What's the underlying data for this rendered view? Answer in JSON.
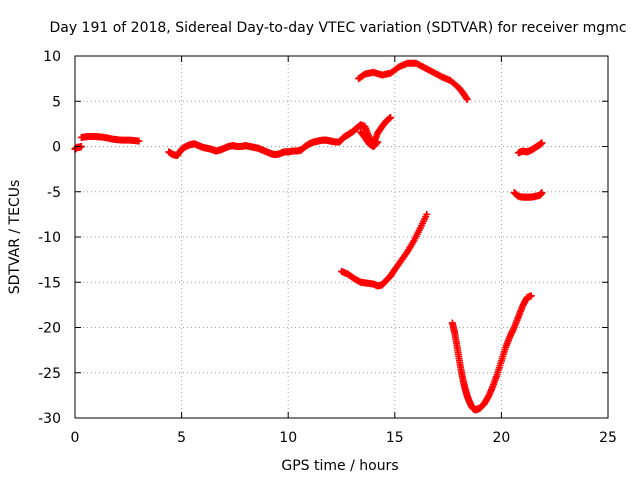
{
  "chart_data": {
    "type": "scatter",
    "title": "Day 191 of 2018, Sidereal Day-to-day VTEC variation (SDTVAR) for receiver mgmc",
    "xlabel": "GPS time / hours",
    "ylabel": "SDTVAR / TECUs",
    "xlim": [
      0,
      25
    ],
    "ylim": [
      -30,
      10
    ],
    "x_ticks": [
      0,
      5,
      10,
      15,
      20,
      25
    ],
    "y_ticks": [
      -30,
      -25,
      -20,
      -15,
      -10,
      -5,
      0,
      5,
      10
    ],
    "grid": true,
    "legend": "none",
    "marker": "plus",
    "series_color": "#ff0000",
    "grid_color": "#a0a0a0",
    "series": [
      {
        "x": [
          0.0,
          0.1,
          0.2,
          0.3
        ],
        "y": [
          -0.3,
          -0.1,
          -0.1,
          0.0
        ]
      },
      {
        "x": [
          0.3,
          0.6,
          1.0,
          1.4,
          1.8,
          2.2,
          2.6,
          3.0
        ],
        "y": [
          1.0,
          1.1,
          1.1,
          1.0,
          0.8,
          0.7,
          0.7,
          0.6
        ]
      },
      {
        "x": [
          4.4,
          4.6,
          4.8,
          5.0,
          5.2,
          5.4,
          5.6,
          5.8,
          6.0,
          6.2,
          6.4,
          6.6,
          6.8,
          7.0,
          7.2,
          7.4,
          7.6,
          7.8,
          8.0,
          8.2,
          8.4,
          8.6,
          8.8,
          9.0,
          9.2,
          9.4,
          9.6,
          9.8,
          10.0,
          10.2,
          10.4,
          10.6,
          10.8,
          11.0,
          11.2,
          11.4,
          11.6,
          11.8,
          12.0,
          12.2,
          12.4,
          12.6,
          12.8,
          13.0,
          13.2,
          13.4,
          13.6,
          13.8,
          14.0,
          14.2,
          14.4,
          14.6,
          14.8
        ],
        "y": [
          -0.6,
          -0.9,
          -1.0,
          -0.3,
          0.0,
          0.2,
          0.3,
          0.1,
          -0.1,
          -0.2,
          -0.3,
          -0.5,
          -0.4,
          -0.2,
          0.0,
          0.1,
          0.0,
          0.0,
          0.1,
          0.0,
          -0.1,
          -0.2,
          -0.4,
          -0.6,
          -0.8,
          -0.9,
          -0.8,
          -0.6,
          -0.6,
          -0.5,
          -0.5,
          -0.4,
          0.0,
          0.3,
          0.5,
          0.6,
          0.7,
          0.7,
          0.6,
          0.5,
          0.5,
          1.0,
          1.3,
          1.6,
          2.0,
          2.4,
          2.2,
          1.0,
          0.3,
          1.5,
          2.2,
          2.8,
          3.2
        ]
      },
      {
        "x": [
          13.4,
          13.6,
          13.8,
          14.0,
          14.2
        ],
        "y": [
          1.6,
          1.0,
          0.3,
          0.0,
          0.5
        ]
      },
      {
        "x": [
          13.3,
          13.6,
          14.0,
          14.4,
          14.8,
          15.2,
          15.6,
          16.0,
          16.4,
          16.8,
          17.2,
          17.6,
          18.0,
          18.2,
          18.4
        ],
        "y": [
          7.5,
          8.0,
          8.2,
          7.9,
          8.1,
          8.8,
          9.2,
          9.2,
          8.7,
          8.2,
          7.7,
          7.3,
          6.5,
          5.9,
          5.2
        ]
      },
      {
        "x": [
          12.5,
          12.8,
          13.1,
          13.4,
          13.7,
          14.0,
          14.2,
          14.4,
          14.6,
          14.8,
          15.0,
          15.3,
          15.6,
          15.9,
          16.2,
          16.5
        ],
        "y": [
          -13.8,
          -14.1,
          -14.6,
          -15.0,
          -15.1,
          -15.2,
          -15.4,
          -15.3,
          -14.8,
          -14.3,
          -13.6,
          -12.6,
          -11.6,
          -10.4,
          -9.0,
          -7.5
        ]
      },
      {
        "x": [
          17.7,
          17.8,
          17.9,
          18.0,
          18.1,
          18.2,
          18.3,
          18.4,
          18.5,
          18.6,
          18.7,
          18.8,
          18.9,
          19.0,
          19.2,
          19.4,
          19.6,
          19.8,
          20.0,
          20.2,
          20.4,
          20.6,
          20.8,
          21.0,
          21.2,
          21.4
        ],
        "y": [
          -19.5,
          -20.5,
          -21.8,
          -23.2,
          -24.6,
          -25.8,
          -26.8,
          -27.6,
          -28.2,
          -28.7,
          -29.0,
          -29.1,
          -29.0,
          -28.9,
          -28.4,
          -27.6,
          -26.5,
          -25.2,
          -23.7,
          -22.2,
          -21.0,
          -20.0,
          -18.8,
          -17.6,
          -16.7,
          -16.5
        ]
      },
      {
        "x": [
          20.6,
          20.8,
          21.0,
          21.2,
          21.4,
          21.6,
          21.8,
          21.9
        ],
        "y": [
          -5.1,
          -5.5,
          -5.6,
          -5.6,
          -5.6,
          -5.5,
          -5.4,
          -5.1
        ]
      },
      {
        "x": [
          20.8,
          21.0,
          21.2,
          21.4,
          21.6,
          21.8,
          21.9
        ],
        "y": [
          -0.7,
          -0.5,
          -0.6,
          -0.4,
          -0.1,
          0.2,
          0.4
        ]
      }
    ]
  }
}
